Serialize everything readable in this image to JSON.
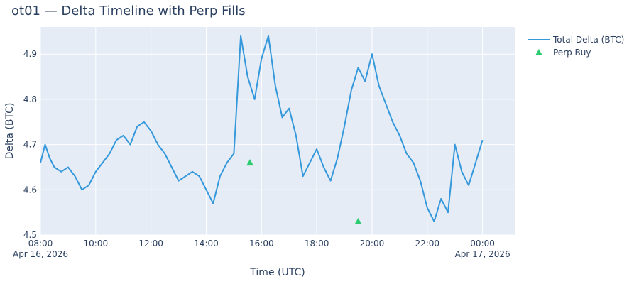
{
  "chart_data": {
    "type": "line",
    "title": "ot01 — Delta Timeline with Perp Fills",
    "xlabel": "Time (UTC)",
    "ylabel": "Delta (BTC)",
    "x_range": [
      "2026-04-16 08:00",
      "2026-04-17 01:10"
    ],
    "ylim": [
      4.5,
      4.96
    ],
    "x_ticks": [
      {
        "at": "2026-04-16 08:00",
        "label": "08:00",
        "sublabel": "Apr 16, 2026"
      },
      {
        "at": "2026-04-16 10:00",
        "label": "10:00",
        "sublabel": ""
      },
      {
        "at": "2026-04-16 12:00",
        "label": "12:00",
        "sublabel": ""
      },
      {
        "at": "2026-04-16 14:00",
        "label": "14:00",
        "sublabel": ""
      },
      {
        "at": "2026-04-16 16:00",
        "label": "16:00",
        "sublabel": ""
      },
      {
        "at": "2026-04-16 18:00",
        "label": "18:00",
        "sublabel": ""
      },
      {
        "at": "2026-04-16 20:00",
        "label": "20:00",
        "sublabel": ""
      },
      {
        "at": "2026-04-16 22:00",
        "label": "22:00",
        "sublabel": ""
      },
      {
        "at": "2026-04-17 00:00",
        "label": "00:00",
        "sublabel": "Apr 17, 2026"
      }
    ],
    "y_ticks": [
      4.5,
      4.6,
      4.7,
      4.8,
      4.9
    ],
    "grid": true,
    "legend_position": "top-right",
    "series": [
      {
        "name": "Total Delta (BTC)",
        "mode": "line",
        "color": "#3498db",
        "points": [
          [
            "2026-04-16 08:00",
            4.66
          ],
          [
            "2026-04-16 08:10",
            4.7
          ],
          [
            "2026-04-16 08:20",
            4.67
          ],
          [
            "2026-04-16 08:30",
            4.65
          ],
          [
            "2026-04-16 08:45",
            4.64
          ],
          [
            "2026-04-16 09:00",
            4.65
          ],
          [
            "2026-04-16 09:15",
            4.63
          ],
          [
            "2026-04-16 09:30",
            4.6
          ],
          [
            "2026-04-16 09:45",
            4.61
          ],
          [
            "2026-04-16 10:00",
            4.64
          ],
          [
            "2026-04-16 10:15",
            4.66
          ],
          [
            "2026-04-16 10:30",
            4.68
          ],
          [
            "2026-04-16 10:45",
            4.71
          ],
          [
            "2026-04-16 11:00",
            4.72
          ],
          [
            "2026-04-16 11:15",
            4.7
          ],
          [
            "2026-04-16 11:30",
            4.74
          ],
          [
            "2026-04-16 11:45",
            4.75
          ],
          [
            "2026-04-16 12:00",
            4.73
          ],
          [
            "2026-04-16 12:15",
            4.7
          ],
          [
            "2026-04-16 12:30",
            4.68
          ],
          [
            "2026-04-16 12:45",
            4.65
          ],
          [
            "2026-04-16 13:00",
            4.62
          ],
          [
            "2026-04-16 13:15",
            4.63
          ],
          [
            "2026-04-16 13:30",
            4.64
          ],
          [
            "2026-04-16 13:45",
            4.63
          ],
          [
            "2026-04-16 14:00",
            4.6
          ],
          [
            "2026-04-16 14:15",
            4.57
          ],
          [
            "2026-04-16 14:30",
            4.63
          ],
          [
            "2026-04-16 14:45",
            4.66
          ],
          [
            "2026-04-16 15:00",
            4.68
          ],
          [
            "2026-04-16 15:15",
            4.94
          ],
          [
            "2026-04-16 15:30",
            4.85
          ],
          [
            "2026-04-16 15:45",
            4.8
          ],
          [
            "2026-04-16 16:00",
            4.89
          ],
          [
            "2026-04-16 16:15",
            4.94
          ],
          [
            "2026-04-16 16:30",
            4.83
          ],
          [
            "2026-04-16 16:45",
            4.76
          ],
          [
            "2026-04-16 17:00",
            4.78
          ],
          [
            "2026-04-16 17:15",
            4.72
          ],
          [
            "2026-04-16 17:30",
            4.63
          ],
          [
            "2026-04-16 17:45",
            4.66
          ],
          [
            "2026-04-16 18:00",
            4.69
          ],
          [
            "2026-04-16 18:15",
            4.65
          ],
          [
            "2026-04-16 18:30",
            4.62
          ],
          [
            "2026-04-16 18:45",
            4.67
          ],
          [
            "2026-04-16 19:00",
            4.74
          ],
          [
            "2026-04-16 19:15",
            4.82
          ],
          [
            "2026-04-16 19:30",
            4.87
          ],
          [
            "2026-04-16 19:45",
            4.84
          ],
          [
            "2026-04-16 20:00",
            4.9
          ],
          [
            "2026-04-16 20:15",
            4.83
          ],
          [
            "2026-04-16 20:30",
            4.79
          ],
          [
            "2026-04-16 20:45",
            4.75
          ],
          [
            "2026-04-16 21:00",
            4.72
          ],
          [
            "2026-04-16 21:15",
            4.68
          ],
          [
            "2026-04-16 21:30",
            4.66
          ],
          [
            "2026-04-16 21:45",
            4.62
          ],
          [
            "2026-04-16 22:00",
            4.56
          ],
          [
            "2026-04-16 22:15",
            4.53
          ],
          [
            "2026-04-16 22:30",
            4.58
          ],
          [
            "2026-04-16 22:45",
            4.55
          ],
          [
            "2026-04-16 23:00",
            4.7
          ],
          [
            "2026-04-16 23:15",
            4.64
          ],
          [
            "2026-04-16 23:30",
            4.61
          ],
          [
            "2026-04-16 23:45",
            4.66
          ],
          [
            "2026-04-17 00:00",
            4.71
          ]
        ]
      },
      {
        "name": "Perp Buy",
        "mode": "markers",
        "color": "#2ecc71",
        "points": [
          [
            "2026-04-16 15:35",
            4.66
          ],
          [
            "2026-04-16 19:30",
            4.53
          ]
        ]
      }
    ]
  }
}
